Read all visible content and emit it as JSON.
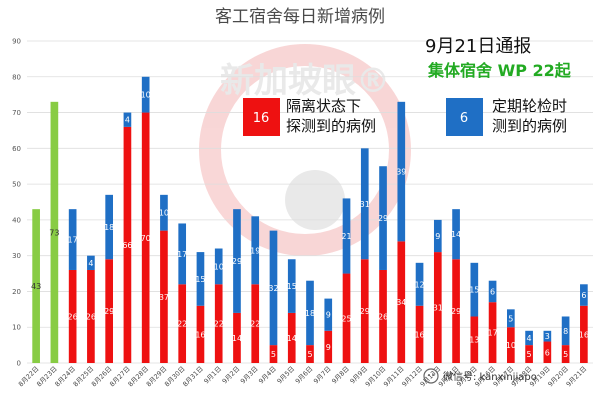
{
  "chart_data": {
    "type": "bar",
    "stacked": true,
    "title": "客工宿舍每日新增病例",
    "categories": [
      "8月22日",
      "8月23日",
      "8月24日",
      "8月25日",
      "8月26日",
      "8月27日",
      "8月28日",
      "8月29日",
      "8月30日",
      "8月31日",
      "9月1日",
      "9月2日",
      "9月3日",
      "9月4日",
      "9月5日",
      "9月6日",
      "9月7日",
      "9月8日",
      "9月9日",
      "9月10日",
      "9月11日",
      "9月12日",
      "9月13日",
      "9月14日",
      "9月15日",
      "9月16日",
      "9月17日",
      "9月18日",
      "9月19日",
      "9月20日",
      "9月21日"
    ],
    "series": [
      {
        "name": "隔离状态下探测到的病例",
        "color": "#ee1111",
        "values": [
          null,
          null,
          26,
          26,
          29,
          66,
          70,
          37,
          22,
          16,
          22,
          14,
          22,
          5,
          14,
          5,
          9,
          25,
          29,
          26,
          34,
          16,
          31,
          29,
          13,
          17,
          10,
          5,
          6,
          5,
          16
        ]
      },
      {
        "name": "定期轮检时测到的病例",
        "color": "#1f6fc5",
        "values": [
          null,
          null,
          17,
          4,
          18,
          4,
          10,
          10,
          17,
          15,
          10,
          29,
          19,
          32,
          15,
          18,
          9,
          21,
          31,
          29,
          39,
          12,
          9,
          14,
          15,
          6,
          5,
          4,
          3,
          8,
          6
        ]
      },
      {
        "name": "",
        "color": "#88cc44",
        "values": [
          43,
          73,
          null,
          null,
          null,
          null,
          null,
          null,
          null,
          null,
          null,
          null,
          null,
          null,
          null,
          null,
          null,
          null,
          null,
          null,
          null,
          null,
          null,
          null,
          null,
          null,
          null,
          null,
          null,
          null,
          null
        ]
      }
    ],
    "yticks": [
      0,
      10,
      20,
      30,
      40,
      50,
      60,
      70,
      80,
      90
    ],
    "ylim": [
      0,
      90
    ],
    "grid": true
  },
  "notice": {
    "line1": "9月21日通报",
    "line2": "集体宿舍 WP 22起"
  },
  "legend": {
    "red_value": "16",
    "red_line1": "隔离状态下",
    "red_line2": "探测到的病例",
    "blue_value": "6",
    "blue_line1": "定期轮检时",
    "blue_line2": "测到的病例"
  },
  "watermark": {
    "brand": "新加坡眼®",
    "wechat": "微信号: kanxinjiapo"
  }
}
